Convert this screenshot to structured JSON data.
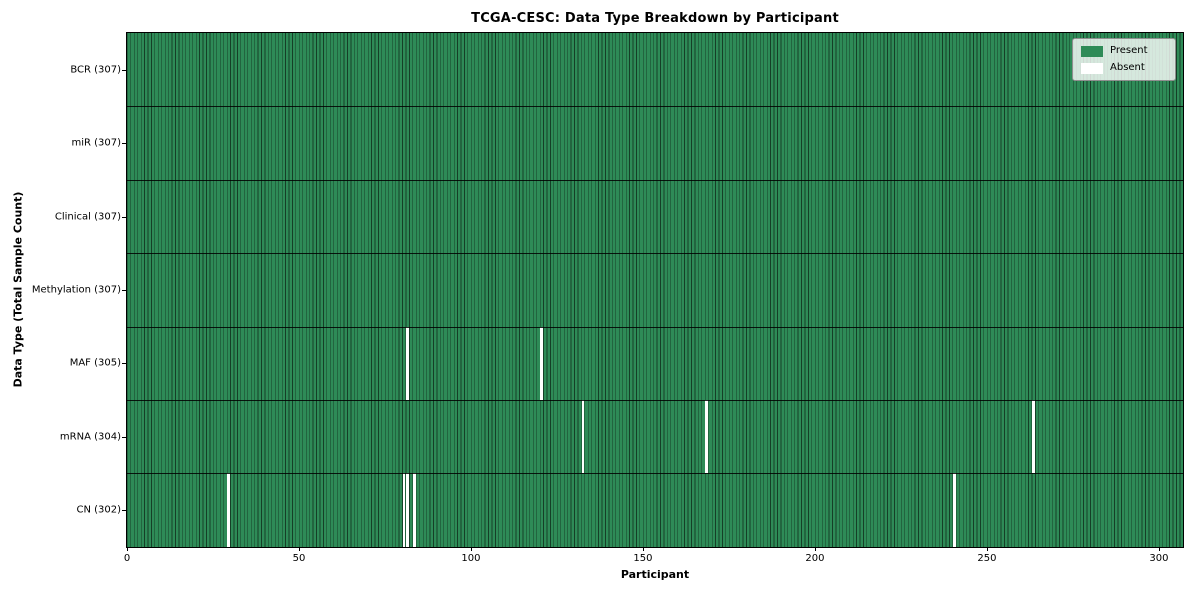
{
  "chart_data": {
    "type": "heatmap",
    "title": "TCGA-CESC: Data Type Breakdown by Participant",
    "xlabel": "Participant",
    "ylabel": "Data Type (Total Sample Count)",
    "n_participants": 307,
    "xlim": [
      0,
      307
    ],
    "xticks": [
      0,
      50,
      100,
      150,
      200,
      250,
      300
    ],
    "grid": false,
    "colors": {
      "present": "#2e8b57",
      "absent": "#ffffff",
      "column_edge": "rgba(0,0,0,0.55)",
      "row_separator": "rgba(0,0,0,0.85)"
    },
    "legend": {
      "position": "upper right",
      "items": [
        {
          "label": "Present",
          "color": "#2e8b57"
        },
        {
          "label": "Absent",
          "color": "#ffffff"
        }
      ]
    },
    "rows": [
      {
        "label": "BCR (307)",
        "data_type": "BCR",
        "present_count": 307,
        "absent_participants": []
      },
      {
        "label": "miR (307)",
        "data_type": "miR",
        "present_count": 307,
        "absent_participants": []
      },
      {
        "label": "Clinical (307)",
        "data_type": "Clinical",
        "present_count": 307,
        "absent_participants": []
      },
      {
        "label": "Methylation (307)",
        "data_type": "Methylation",
        "present_count": 307,
        "absent_participants": []
      },
      {
        "label": "MAF (305)",
        "data_type": "MAF",
        "present_count": 305,
        "absent_participants": [
          81,
          120
        ]
      },
      {
        "label": "mRNA (304)",
        "data_type": "mRNA",
        "present_count": 304,
        "absent_participants": [
          132,
          168,
          263
        ]
      },
      {
        "label": "CN (302)",
        "data_type": "CN",
        "present_count": 302,
        "absent_participants": [
          29,
          80,
          81,
          83,
          240
        ]
      }
    ]
  }
}
